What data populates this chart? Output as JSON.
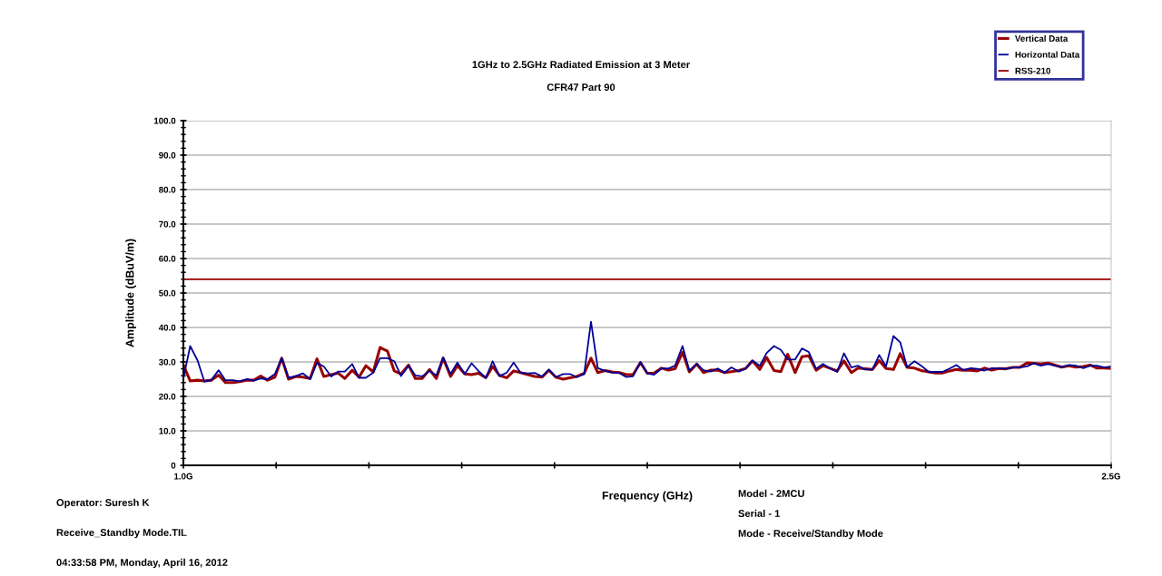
{
  "chart_data": {
    "type": "line",
    "title": "1GHz to 2.5GHz Radiated Emission at 3 Meter",
    "subtitle": "CFR47 Part 90",
    "xlabel": "Frequency (GHz)",
    "ylabel": "Amplitude (dBuV/m)",
    "x": [
      1.0,
      1.011,
      1.023,
      1.034,
      1.045,
      1.057,
      1.068,
      1.08,
      1.091,
      1.102,
      1.114,
      1.125,
      1.136,
      1.148,
      1.159,
      1.17,
      1.182,
      1.193,
      1.205,
      1.216,
      1.227,
      1.239,
      1.25,
      1.261,
      1.273,
      1.284,
      1.295,
      1.307,
      1.318,
      1.33,
      1.341,
      1.352,
      1.364,
      1.375,
      1.386,
      1.398,
      1.409,
      1.42,
      1.432,
      1.443,
      1.455,
      1.466,
      1.477,
      1.489,
      1.5,
      1.511,
      1.523,
      1.534,
      1.545,
      1.557,
      1.568,
      1.58,
      1.591,
      1.602,
      1.614,
      1.625,
      1.636,
      1.648,
      1.659,
      1.67,
      1.682,
      1.693,
      1.705,
      1.716,
      1.727,
      1.739,
      1.75,
      1.761,
      1.773,
      1.784,
      1.795,
      1.807,
      1.818,
      1.83,
      1.841,
      1.852,
      1.864,
      1.875,
      1.886,
      1.898,
      1.909,
      1.92,
      1.932,
      1.943,
      1.955,
      1.966,
      1.977,
      1.989,
      2.0,
      2.011,
      2.023,
      2.034,
      2.045,
      2.057,
      2.068,
      2.08,
      2.091,
      2.102,
      2.114,
      2.125,
      2.136,
      2.148,
      2.159,
      2.17,
      2.182,
      2.193,
      2.205,
      2.216,
      2.227,
      2.239,
      2.25,
      2.261,
      2.273,
      2.284,
      2.295,
      2.307,
      2.318,
      2.33,
      2.341,
      2.352,
      2.364,
      2.375,
      2.386,
      2.398,
      2.409,
      2.42,
      2.432,
      2.443,
      2.455,
      2.466,
      2.477,
      2.489,
      2.5
    ],
    "series": [
      {
        "name": "Vertical Data",
        "color": "#990000",
        "values": [
          29.1,
          24.5,
          24.7,
          24.5,
          24.7,
          26.2,
          24.0,
          24.0,
          24.3,
          24.7,
          24.7,
          25.9,
          24.7,
          25.6,
          31.1,
          25.0,
          25.8,
          25.6,
          25.2,
          30.9,
          25.8,
          26.3,
          26.8,
          25.2,
          27.6,
          25.6,
          28.9,
          27.1,
          34.2,
          33.1,
          27.4,
          26.5,
          29.1,
          25.2,
          25.2,
          27.8,
          25.2,
          31.1,
          25.8,
          28.9,
          26.5,
          26.3,
          26.7,
          25.4,
          28.7,
          26.1,
          25.4,
          27.4,
          26.9,
          26.3,
          25.8,
          25.6,
          27.6,
          25.6,
          25.0,
          25.4,
          25.8,
          26.7,
          31.1,
          26.9,
          27.5,
          27.1,
          26.9,
          26.3,
          26.3,
          29.8,
          26.7,
          26.8,
          28.2,
          27.6,
          28.0,
          32.8,
          27.1,
          29.4,
          26.9,
          27.6,
          27.6,
          26.9,
          27.2,
          27.5,
          28.1,
          30.3,
          27.8,
          31.3,
          27.5,
          27.2,
          32.2,
          26.9,
          31.5,
          31.8,
          27.6,
          28.9,
          28.2,
          27.4,
          30.3,
          26.9,
          28.2,
          28.0,
          27.8,
          30.4,
          28.1,
          27.8,
          32.4,
          28.4,
          28.2,
          27.5,
          27.1,
          26.8,
          26.8,
          27.4,
          27.8,
          27.6,
          27.6,
          27.4,
          28.2,
          27.6,
          28.1,
          28.0,
          28.4,
          28.4,
          29.7,
          29.6,
          29.4,
          29.7,
          29.1,
          28.5,
          28.9,
          28.5,
          28.7,
          29.1,
          28.2,
          28.2,
          28.1
        ]
      },
      {
        "name": "Horizontal Data",
        "color": "#000099",
        "values": [
          25.2,
          34.6,
          30.4,
          24.3,
          24.7,
          27.6,
          24.7,
          24.7,
          24.4,
          25.0,
          24.6,
          25.2,
          25.0,
          26.5,
          31.1,
          25.4,
          25.9,
          26.7,
          25.0,
          29.7,
          28.7,
          25.8,
          27.2,
          27.2,
          29.4,
          25.4,
          25.4,
          26.9,
          31.1,
          31.1,
          30.2,
          25.9,
          28.9,
          26.1,
          25.8,
          27.4,
          26.1,
          31.3,
          26.5,
          29.8,
          26.5,
          29.6,
          27.4,
          25.4,
          30.2,
          25.9,
          26.9,
          29.8,
          26.9,
          26.7,
          26.8,
          25.8,
          27.8,
          25.6,
          26.5,
          26.5,
          25.6,
          26.5,
          41.7,
          28.2,
          27.4,
          26.9,
          26.8,
          25.6,
          25.8,
          30.0,
          26.7,
          26.3,
          28.1,
          28.1,
          28.9,
          34.6,
          27.5,
          29.4,
          27.6,
          27.2,
          28.1,
          26.9,
          28.4,
          27.2,
          28.1,
          30.4,
          28.9,
          32.6,
          34.6,
          33.5,
          30.7,
          30.7,
          33.9,
          32.9,
          28.0,
          29.4,
          28.2,
          27.1,
          32.5,
          28.4,
          28.9,
          27.8,
          27.8,
          32.0,
          28.7,
          37.5,
          35.7,
          28.5,
          30.2,
          28.9,
          27.1,
          27.1,
          27.1,
          28.1,
          29.1,
          27.6,
          28.2,
          28.0,
          27.5,
          28.2,
          28.1,
          28.0,
          28.4,
          28.4,
          28.7,
          29.6,
          28.9,
          29.4,
          28.9,
          28.5,
          29.1,
          28.9,
          28.2,
          28.9,
          28.9,
          28.4,
          28.7
        ]
      }
    ],
    "ref_lines": [
      {
        "axis": "y",
        "value": 54.0,
        "label": "RSS-210",
        "color": "#990000"
      }
    ],
    "xlim": [
      1.0,
      2.5
    ],
    "xticks": [
      {
        "value": 1.0,
        "label": "1.0G"
      },
      {
        "value": 1.15,
        "label": null
      },
      {
        "value": 1.3,
        "label": null
      },
      {
        "value": 1.45,
        "label": null
      },
      {
        "value": 1.6,
        "label": null
      },
      {
        "value": 1.75,
        "label": null
      },
      {
        "value": 1.9,
        "label": null
      },
      {
        "value": 2.05,
        "label": null
      },
      {
        "value": 2.2,
        "label": null
      },
      {
        "value": 2.35,
        "label": null
      },
      {
        "value": 2.5,
        "label": "2.5G"
      }
    ],
    "ylim": [
      0,
      100
    ],
    "yticks": [
      0,
      {
        "value": 10,
        "label": "10.0"
      },
      {
        "value": 20,
        "label": "20.0"
      },
      {
        "value": 30,
        "label": "30.0"
      },
      {
        "value": 40,
        "label": "40.0"
      },
      {
        "value": 50,
        "label": "50.0"
      },
      {
        "value": 60,
        "label": "60.0"
      },
      {
        "value": 70,
        "label": "70.0"
      },
      {
        "value": 80,
        "label": "80.0"
      },
      {
        "value": 90,
        "label": "90.0"
      },
      {
        "value": 100,
        "label": "100.0"
      }
    ],
    "grid": "y",
    "legend": "top right",
    "marker": "none",
    "line_style": "solid",
    "annotations": [
      "Operator: Suresh K",
      "Receive_Standby Mode.TIL",
      "04:33:58 PM, Monday, April 16, 2012",
      "Model - 2MCU",
      "Serial - 1",
      "Mode - Receive/Standby Mode"
    ]
  }
}
